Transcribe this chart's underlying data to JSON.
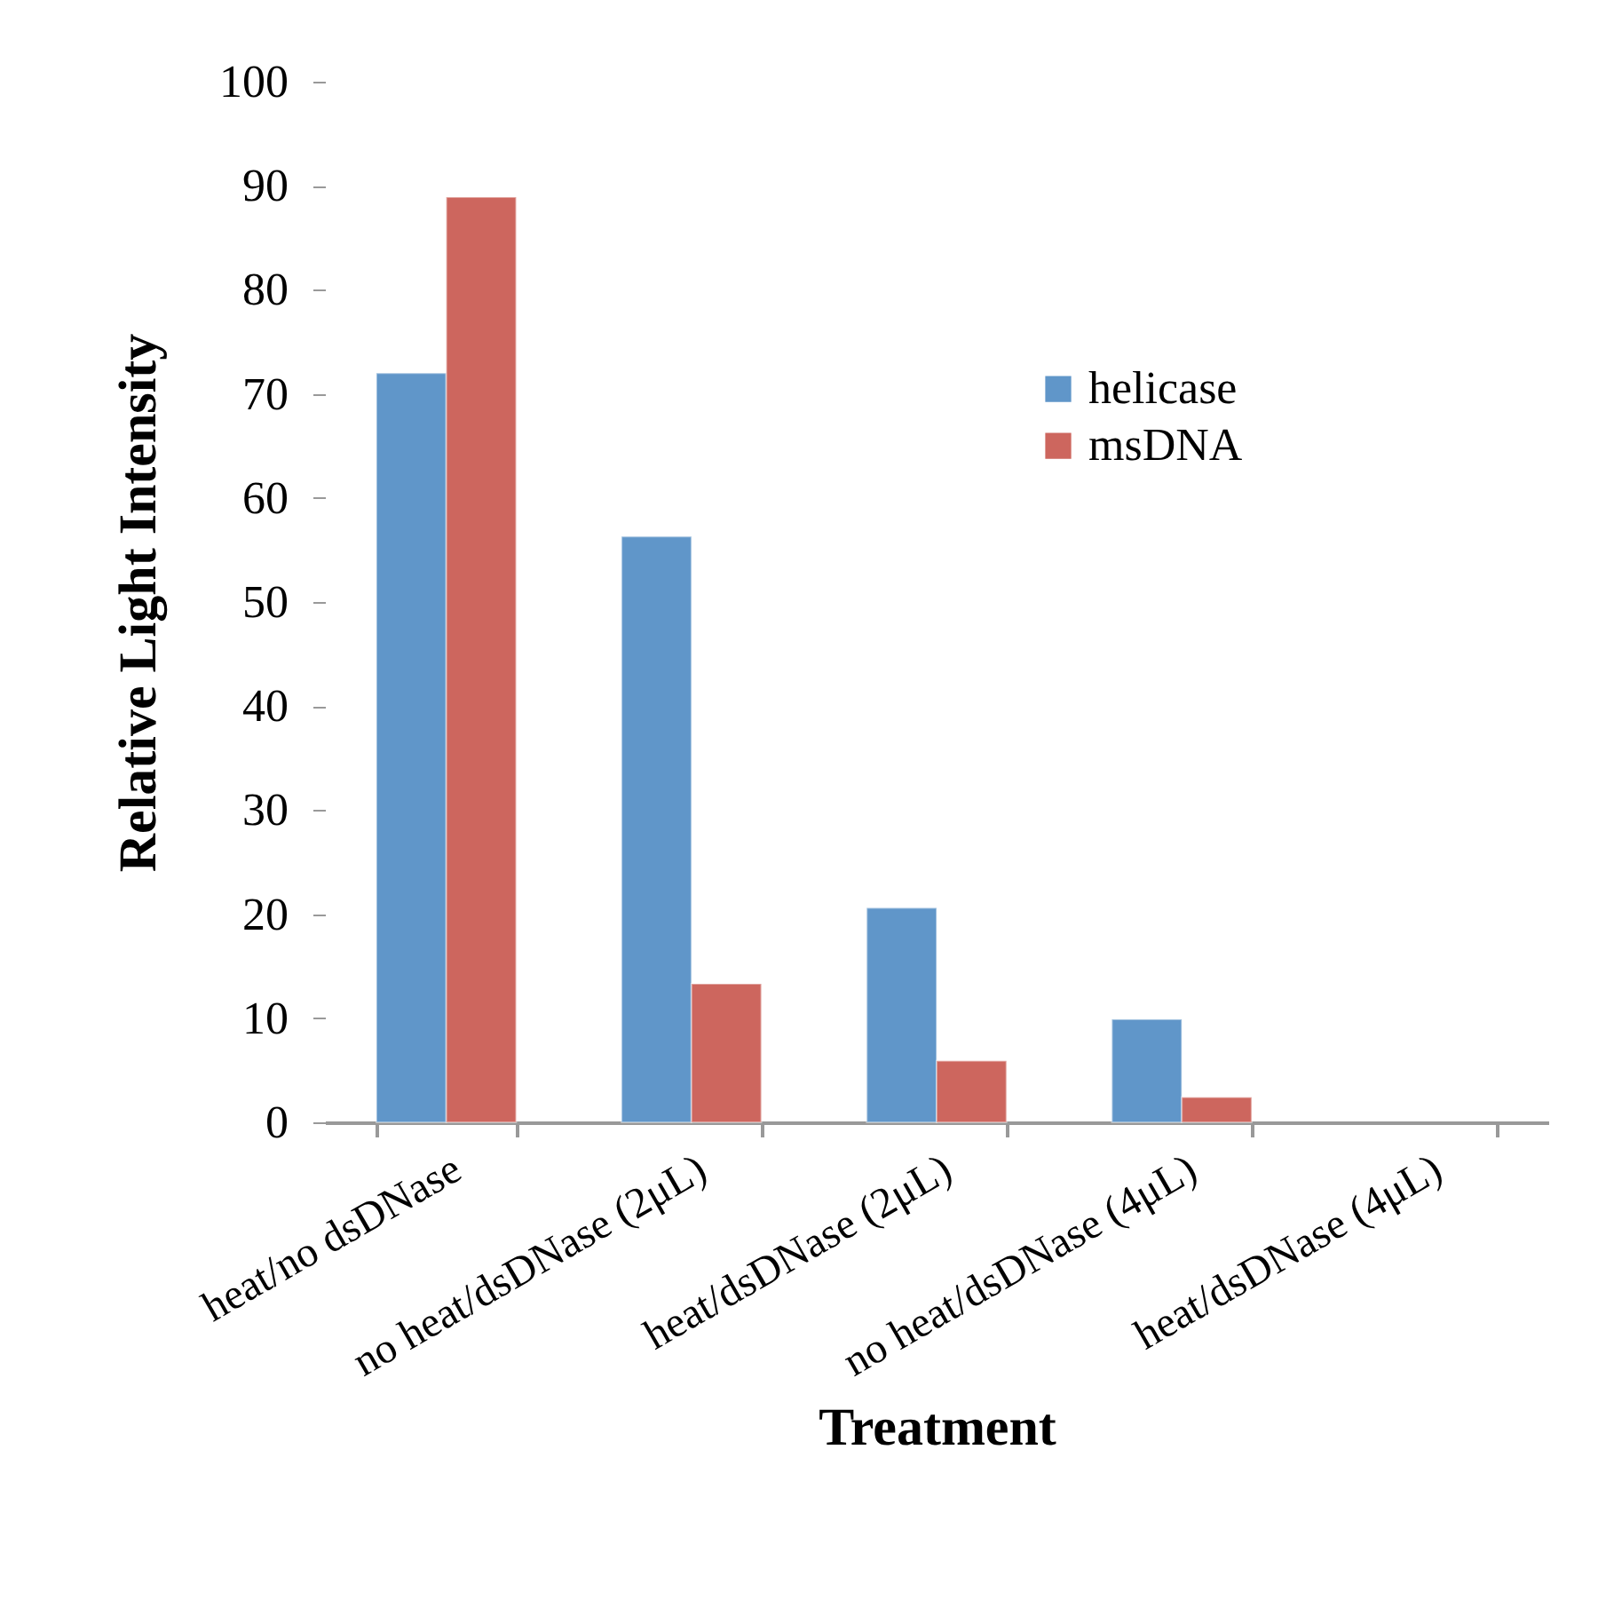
{
  "chart_data": {
    "type": "bar",
    "xlabel": "Treatment",
    "ylabel": "Relative Light Intensity",
    "categories": [
      "heat/no dsDNase",
      "no heat/dsDNase (2μL)",
      "heat/dsDNase (2μL)",
      "no heat/dsDNase (4μL)",
      "heat/dsDNase (4μL)"
    ],
    "series": [
      {
        "name": "helicase",
        "color": "#6096c9",
        "values": [
          72,
          56.3,
          20.6,
          9.9,
          null
        ]
      },
      {
        "name": "msDNA",
        "color": "#cd665e",
        "values": [
          88.9,
          13.3,
          5.9,
          2.4,
          null
        ]
      }
    ],
    "ylim": [
      0,
      100
    ],
    "yticks": [
      0,
      10,
      20,
      30,
      40,
      50,
      60,
      70,
      80,
      90,
      100
    ],
    "grid": false,
    "legend": "top right"
  }
}
